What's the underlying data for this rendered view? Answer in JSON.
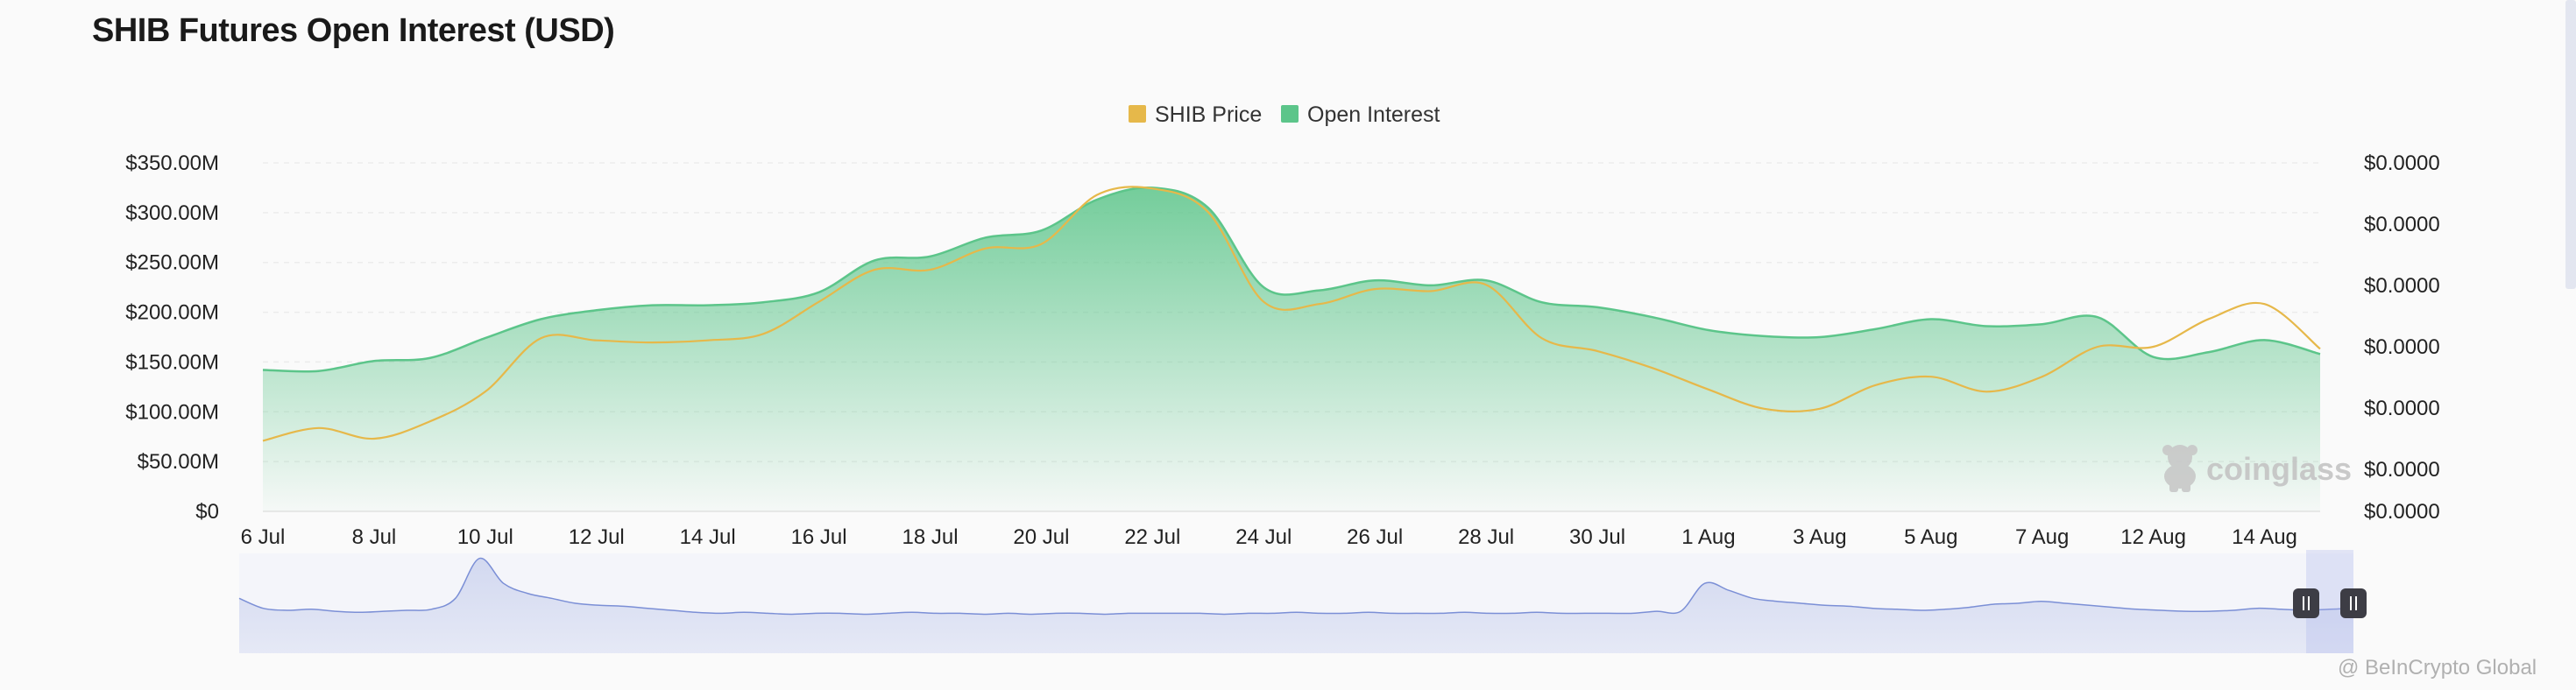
{
  "page": {
    "title": "SHIB Futures Open Interest (USD)"
  },
  "watermark": {
    "brand": "coinglass",
    "credit": "@ BeInCrypto Global"
  },
  "colors": {
    "price": "#e6b84a",
    "open_interest": "#5cc58a",
    "navigator": "#7b8fd6"
  },
  "chart_data": {
    "type": "area",
    "title": "SHIB Futures Open Interest (USD)",
    "legend": [
      "SHIB Price",
      "Open Interest"
    ],
    "legend_position": "top-center",
    "grid": true,
    "x": [
      "6 Jul",
      "7 Jul",
      "8 Jul",
      "9 Jul",
      "10 Jul",
      "11 Jul",
      "12 Jul",
      "13 Jul",
      "14 Jul",
      "15 Jul",
      "16 Jul",
      "17 Jul",
      "18 Jul",
      "19 Jul",
      "20 Jul",
      "21 Jul",
      "22 Jul",
      "23 Jul",
      "24 Jul",
      "25 Jul",
      "26 Jul",
      "27 Jul",
      "28 Jul",
      "29 Jul",
      "30 Jul",
      "31 Jul",
      "1 Aug",
      "2 Aug",
      "3 Aug",
      "4 Aug",
      "5 Aug",
      "6 Aug",
      "7 Aug",
      "8 Aug",
      "12 Aug",
      "13 Aug",
      "14 Aug",
      "15 Aug"
    ],
    "x_tick_labels": [
      "6 Jul",
      "8 Jul",
      "10 Jul",
      "12 Jul",
      "14 Jul",
      "16 Jul",
      "18 Jul",
      "20 Jul",
      "22 Jul",
      "24 Jul",
      "26 Jul",
      "28 Jul",
      "30 Jul",
      "1 Aug",
      "3 Aug",
      "5 Aug",
      "7 Aug",
      "12 Aug",
      "14 Aug"
    ],
    "y_left": {
      "label": "",
      "ticks": [
        "$0",
        "$50.00M",
        "$100.00M",
        "$150.00M",
        "$200.00M",
        "$250.00M",
        "$300.00M",
        "$350.00M"
      ],
      "ylim": [
        0,
        350000000
      ]
    },
    "y_right": {
      "label": "",
      "ticks": [
        "$0.0000",
        "$0.0000",
        "$0.0000",
        "$0.0000",
        "$0.0000",
        "$0.0000",
        "$0.0000"
      ]
    },
    "series": [
      {
        "name": "Open Interest",
        "axis": "left",
        "values": [
          142000000,
          141000000,
          151000000,
          154000000,
          174000000,
          193000000,
          202000000,
          207000000,
          207000000,
          210000000,
          220000000,
          252000000,
          256000000,
          275000000,
          282000000,
          313000000,
          325000000,
          305000000,
          225000000,
          222000000,
          232000000,
          227000000,
          232000000,
          210000000,
          205000000,
          195000000,
          182000000,
          176000000,
          175000000,
          183000000,
          193000000,
          186000000,
          188000000,
          195000000,
          155000000,
          160000000,
          172000000,
          158000000
        ]
      },
      {
        "name": "SHIB Price",
        "axis": "right",
        "values": [
          1.4e-05,
          1.46e-05,
          1.41e-05,
          1.49e-05,
          1.63e-05,
          1.88e-05,
          1.87e-05,
          1.86e-05,
          1.87e-05,
          1.9e-05,
          2.05e-05,
          2.2e-05,
          2.2e-05,
          2.3e-05,
          2.32e-05,
          2.55e-05,
          2.58e-05,
          2.47e-05,
          2.05e-05,
          2.04e-05,
          2.11e-05,
          2.1e-05,
          2.13e-05,
          1.88e-05,
          1.82e-05,
          1.74e-05,
          1.64e-05,
          1.55e-05,
          1.55e-05,
          1.66e-05,
          1.7e-05,
          1.63e-05,
          1.7e-05,
          1.84e-05,
          1.84e-05,
          1.97e-05,
          2.04e-05,
          1.83e-05
        ]
      }
    ],
    "navigator": {
      "values": [
        0.55,
        0.45,
        0.43,
        0.44,
        0.42,
        0.41,
        0.42,
        0.43,
        0.44,
        0.55,
        0.95,
        0.7,
        0.6,
        0.55,
        0.5,
        0.48,
        0.47,
        0.45,
        0.43,
        0.41,
        0.4,
        0.41,
        0.4,
        0.39,
        0.4,
        0.4,
        0.39,
        0.4,
        0.41,
        0.4,
        0.4,
        0.39,
        0.4,
        0.39,
        0.4,
        0.4,
        0.39,
        0.4,
        0.4,
        0.4,
        0.4,
        0.39,
        0.4,
        0.4,
        0.41,
        0.4,
        0.4,
        0.41,
        0.4,
        0.4,
        0.4,
        0.41,
        0.4,
        0.4,
        0.41,
        0.4,
        0.4,
        0.4,
        0.4,
        0.42,
        0.42,
        0.7,
        0.63,
        0.55,
        0.52,
        0.5,
        0.48,
        0.47,
        0.45,
        0.44,
        0.43,
        0.44,
        0.46,
        0.49,
        0.5,
        0.52,
        0.5,
        0.48,
        0.46,
        0.44,
        0.43,
        0.42,
        0.42,
        0.43,
        0.45,
        0.44,
        0.43,
        0.44,
        0.45
      ]
    }
  }
}
